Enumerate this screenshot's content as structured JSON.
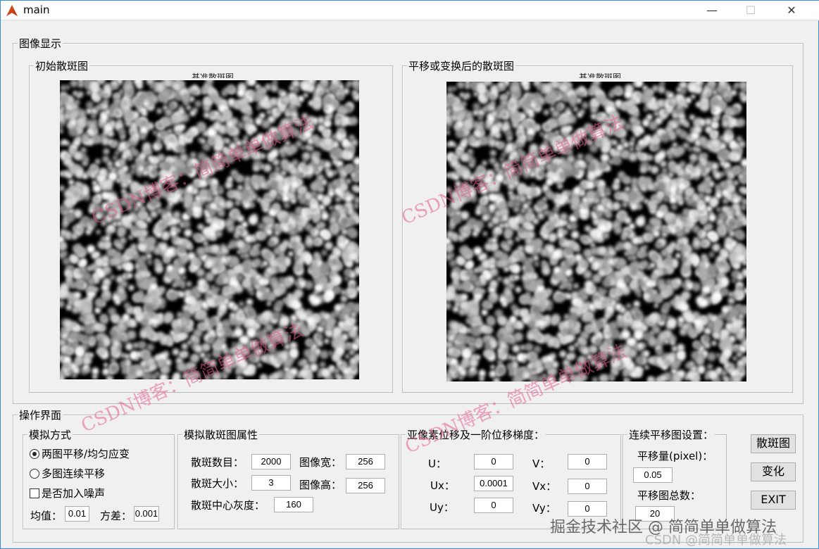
{
  "window": {
    "title": "main",
    "minimize": "—",
    "maximize": "☐",
    "close": "✕"
  },
  "display_panel": {
    "title": "图像显示",
    "left": {
      "title": "初始散斑图",
      "axes_title": "基准散斑图"
    },
    "right": {
      "title": "平移或变换后的散斑图",
      "axes_title": "基准散斑图"
    }
  },
  "ops_panel": {
    "title": "操作界面",
    "mode": {
      "title": "模拟方式",
      "radio1": "两图平移/均匀应变",
      "radio1_selected": true,
      "radio2": "多图连续平移",
      "radio2_selected": false,
      "noise_label": "是否加入噪声",
      "noise_checked": false,
      "mean_label": "均值：",
      "mean_value": "0.01",
      "var_label": "方差：",
      "var_value": "0.001"
    },
    "props": {
      "title": "模拟散斑图属性",
      "count_label": "散斑数目：",
      "count_value": "2000",
      "width_label": "图像宽：",
      "width_value": "256",
      "size_label": "散斑大小：",
      "size_value": "3",
      "height_label": "图像高：",
      "height_value": "256",
      "gray_label": "散斑中心灰度：",
      "gray_value": "160"
    },
    "disp": {
      "title": "亚像素位移及一阶位移梯度：",
      "u_label": "U：",
      "u_value": "0",
      "v_label": "V：",
      "v_value": "0",
      "ux_label": "Ux：",
      "ux_value": "0.0001",
      "vx_label": "Vx：",
      "vx_value": "0",
      "uy_label": "Uy：",
      "uy_value": "0",
      "vy_label": "Vy：",
      "vy_value": "0"
    },
    "seq": {
      "title": "连续平移图设置：",
      "shift_label": "平移量(pixel)：",
      "shift_value": "0.05",
      "total_label": "平移图总数：",
      "total_value": "20"
    },
    "buttons": {
      "speckle": "散斑图",
      "transform": "变化",
      "exit": "EXIT"
    }
  },
  "watermarks": {
    "blog": "CSDN博客：简简单单做算法",
    "juejin": "掘金技术社区 @ 简简单单做算法",
    "csdn": "CSDN @简简单单做算法"
  }
}
